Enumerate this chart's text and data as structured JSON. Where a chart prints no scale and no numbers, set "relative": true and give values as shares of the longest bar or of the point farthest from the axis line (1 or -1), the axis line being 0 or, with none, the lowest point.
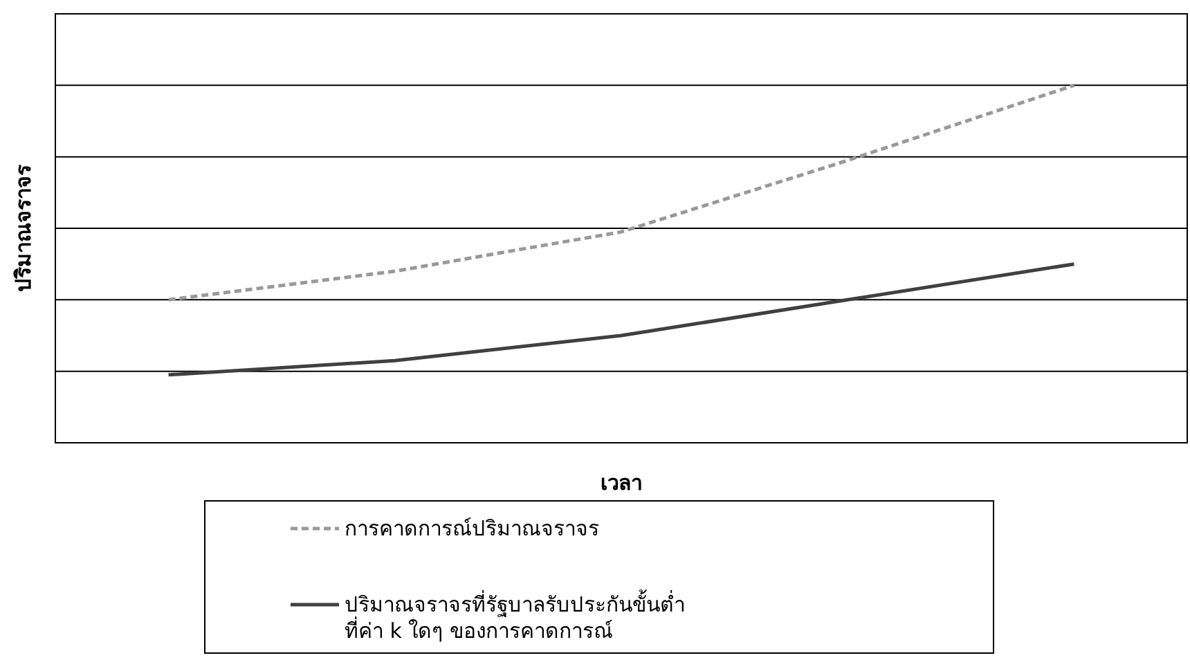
{
  "chart_data": {
    "type": "line",
    "xlabel": "เวลา",
    "ylabel": "ปริมาณจราจร",
    "relative": true,
    "grid": "y",
    "legend": "bottom",
    "marker": "none",
    "categories": [
      null,
      null,
      null,
      null,
      null
    ],
    "series": [
      {
        "name": "การคาดการณ์ปริมาณจราจร",
        "color": "#999999",
        "line_style": "dashed",
        "values": [
          0.4,
          0.48,
          0.59,
          0.79,
          1
        ]
      },
      {
        "name": "ปริมาณจราจรที่รัฐบาลรับประกันขั้นต่ำ\nที่ค่า k ใดๆ ของการคาดการณ์",
        "color": "#404040",
        "line_style": "solid",
        "values": [
          0.19,
          0.23,
          0.3,
          0.4,
          0.5
        ]
      }
    ]
  }
}
